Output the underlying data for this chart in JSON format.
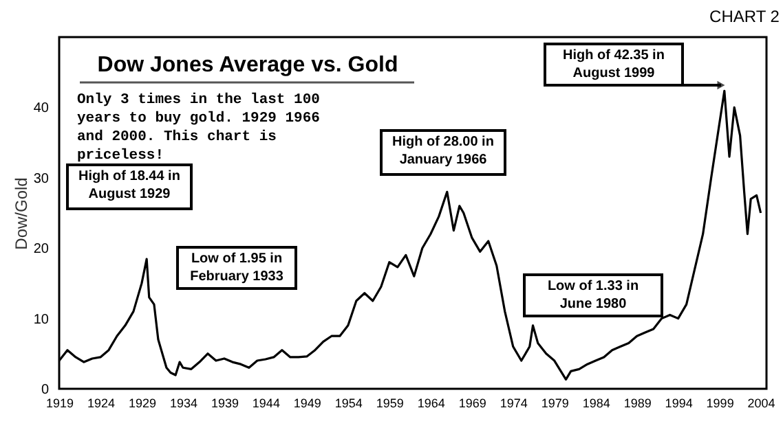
{
  "chart_data": {
    "type": "line",
    "title": "Dow Jones Average vs. Gold",
    "ylabel": "Dow/Gold",
    "x": [
      1919,
      1920,
      1921,
      1922,
      1923,
      1924,
      1925,
      1926,
      1927,
      1928,
      1929,
      1929.6,
      1929.9,
      1930.5,
      1931,
      1932,
      1932.5,
      1933.1,
      1933.6,
      1934,
      1935,
      1936,
      1937,
      1938,
      1939,
      1940,
      1941,
      1942,
      1943,
      1944,
      1945,
      1946,
      1947,
      1948,
      1949,
      1950,
      1951,
      1952,
      1953,
      1954,
      1955,
      1956,
      1957,
      1958,
      1959,
      1960,
      1961,
      1962,
      1963,
      1964,
      1965,
      1966.0,
      1966.8,
      1967.5,
      1968,
      1969,
      1970,
      1971,
      1972,
      1973,
      1974,
      1975,
      1976,
      1976.4,
      1977,
      1978,
      1979,
      1980.4,
      1981,
      1982,
      1983,
      1984,
      1985,
      1986,
      1987,
      1988,
      1989,
      1990,
      1991,
      1992,
      1993,
      1994,
      1995,
      1996,
      1997,
      1998,
      1999.6,
      2000.2,
      2000.8,
      2001.5,
      2002,
      2002.4,
      2002.8,
      2003.5,
      2004
    ],
    "series": [
      {
        "color": "#000000",
        "values": [
          4,
          5.5,
          4.5,
          3.8,
          4.3,
          4.5,
          5.5,
          7.5,
          9,
          11,
          15,
          18.44,
          13,
          12,
          7,
          3,
          2.3,
          1.95,
          3.8,
          3,
          2.8,
          3.8,
          5,
          4,
          4.3,
          3.8,
          3.5,
          3,
          4,
          4.2,
          4.5,
          5.5,
          4.5,
          4.5,
          4.6,
          5.5,
          6.7,
          7.5,
          7.5,
          9,
          12.5,
          13.6,
          12.5,
          14.5,
          18,
          17.3,
          19,
          16,
          20,
          22,
          24.5,
          28.0,
          22.5,
          26,
          25,
          21.5,
          19.5,
          21,
          17.5,
          11,
          6,
          4,
          6,
          9,
          6.5,
          5,
          4,
          1.33,
          2.5,
          2.8,
          3.5,
          4,
          4.5,
          5.5,
          6,
          6.5,
          7.5,
          8,
          8.5,
          10,
          10.5,
          10,
          12,
          17,
          22,
          30,
          42.35,
          33,
          40,
          36,
          28,
          22,
          27,
          27.5,
          25
        ]
      }
    ],
    "xlim": [
      1919,
      2004.7
    ],
    "xticks": [
      1919,
      1924,
      1929,
      1934,
      1939,
      1944,
      1949,
      1954,
      1959,
      1964,
      1969,
      1974,
      1979,
      1984,
      1989,
      1994,
      1999,
      2004
    ],
    "ylim": [
      0,
      50
    ],
    "yticks": [
      0,
      10,
      20,
      30,
      40
    ],
    "grid": false,
    "marker": "none",
    "line_style": "solid",
    "annotations": [
      "CHART 2",
      "Only 3 times in the last 100\nyears to buy gold. 1929 1966\nand 2000. This chart is\npriceless!",
      "High of 18.44 in\nAugust 1929",
      "Low of 1.95 in\nFebruary 1933",
      "High of 28.00 in\nJanuary 1966",
      "Low of 1.33 in\nJune 1980",
      "High of 42.35 in\nAugust 1999"
    ]
  }
}
